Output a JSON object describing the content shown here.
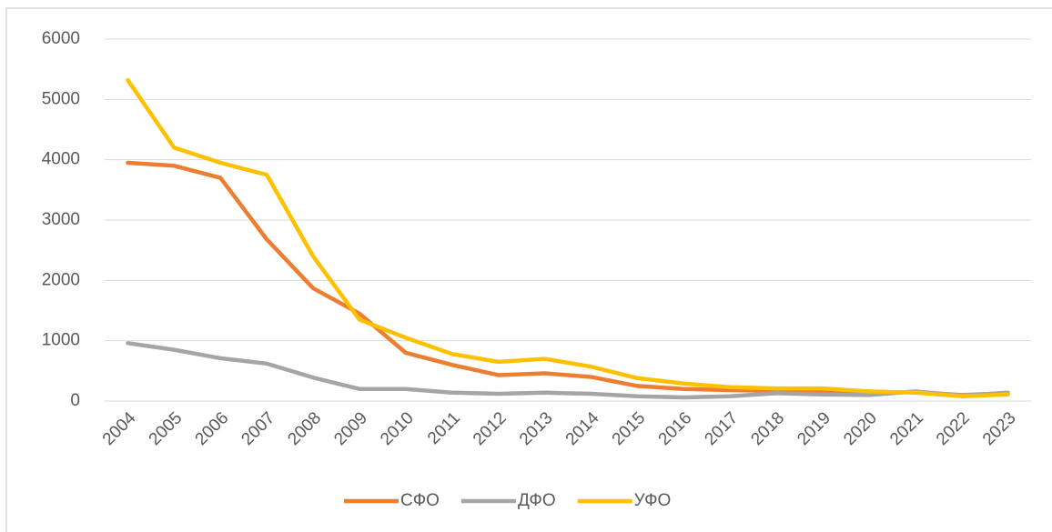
{
  "chart_data": {
    "type": "line",
    "categories": [
      "2004",
      "2005",
      "2006",
      "2007",
      "2008",
      "2009",
      "2010",
      "2011",
      "2012",
      "2013",
      "2014",
      "2015",
      "2016",
      "2017",
      "2018",
      "2019",
      "2020",
      "2021",
      "2022",
      "2023"
    ],
    "series": [
      {
        "name": "СФО",
        "color": "#ed7d31",
        "values": [
          3950,
          3900,
          3700,
          2680,
          1870,
          1450,
          800,
          600,
          430,
          460,
          400,
          250,
          200,
          180,
          170,
          150,
          130,
          150,
          100,
          130
        ]
      },
      {
        "name": "ДФО",
        "color": "#a5a5a5",
        "values": [
          960,
          850,
          710,
          620,
          390,
          200,
          200,
          140,
          120,
          140,
          120,
          80,
          60,
          80,
          130,
          110,
          100,
          160,
          90,
          140
        ]
      },
      {
        "name": "УФО",
        "color": "#ffc000",
        "values": [
          5320,
          4200,
          3950,
          3750,
          2400,
          1350,
          1050,
          780,
          650,
          700,
          570,
          380,
          290,
          230,
          210,
          210,
          160,
          140,
          80,
          110
        ]
      }
    ],
    "ylim": [
      0,
      6000
    ],
    "yticks": [
      0,
      1000,
      2000,
      3000,
      4000,
      5000,
      6000
    ],
    "grid": true,
    "legend": "bottom"
  }
}
